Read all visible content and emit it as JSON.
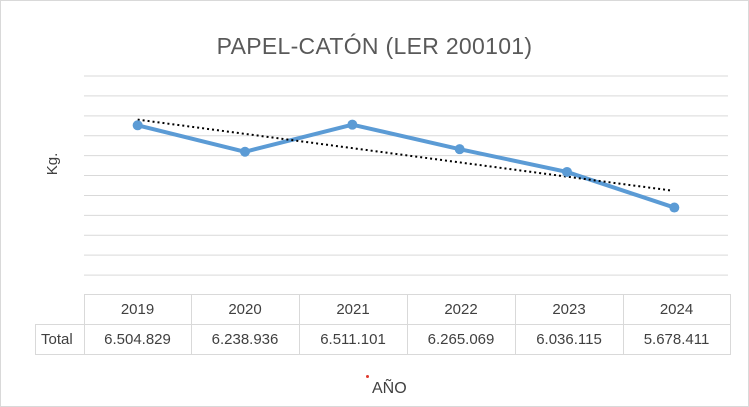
{
  "chart_data": {
    "type": "line",
    "title": "PAPEL-CATÓN (LER 200101)",
    "ylabel": "Kg.",
    "xlabel": "AÑO",
    "categories": [
      "2019",
      "2020",
      "2021",
      "2022",
      "2023",
      "2024"
    ],
    "series": [
      {
        "name": "Total",
        "values": [
          6504829,
          6238936,
          6511101,
          6265069,
          6036115,
          5678411
        ],
        "display_values": [
          "6.504.829",
          "6.238.936",
          "6.511.101",
          "6.265.069",
          "6.036.115",
          "5.678.411"
        ],
        "color": "#5b9bd5"
      }
    ],
    "trendline": {
      "type": "linear",
      "color": "#000000",
      "style": "dotted"
    },
    "ylim": [
      4800000,
      7000000
    ],
    "ystep": 200000,
    "grid": true,
    "legend": "data-table"
  }
}
